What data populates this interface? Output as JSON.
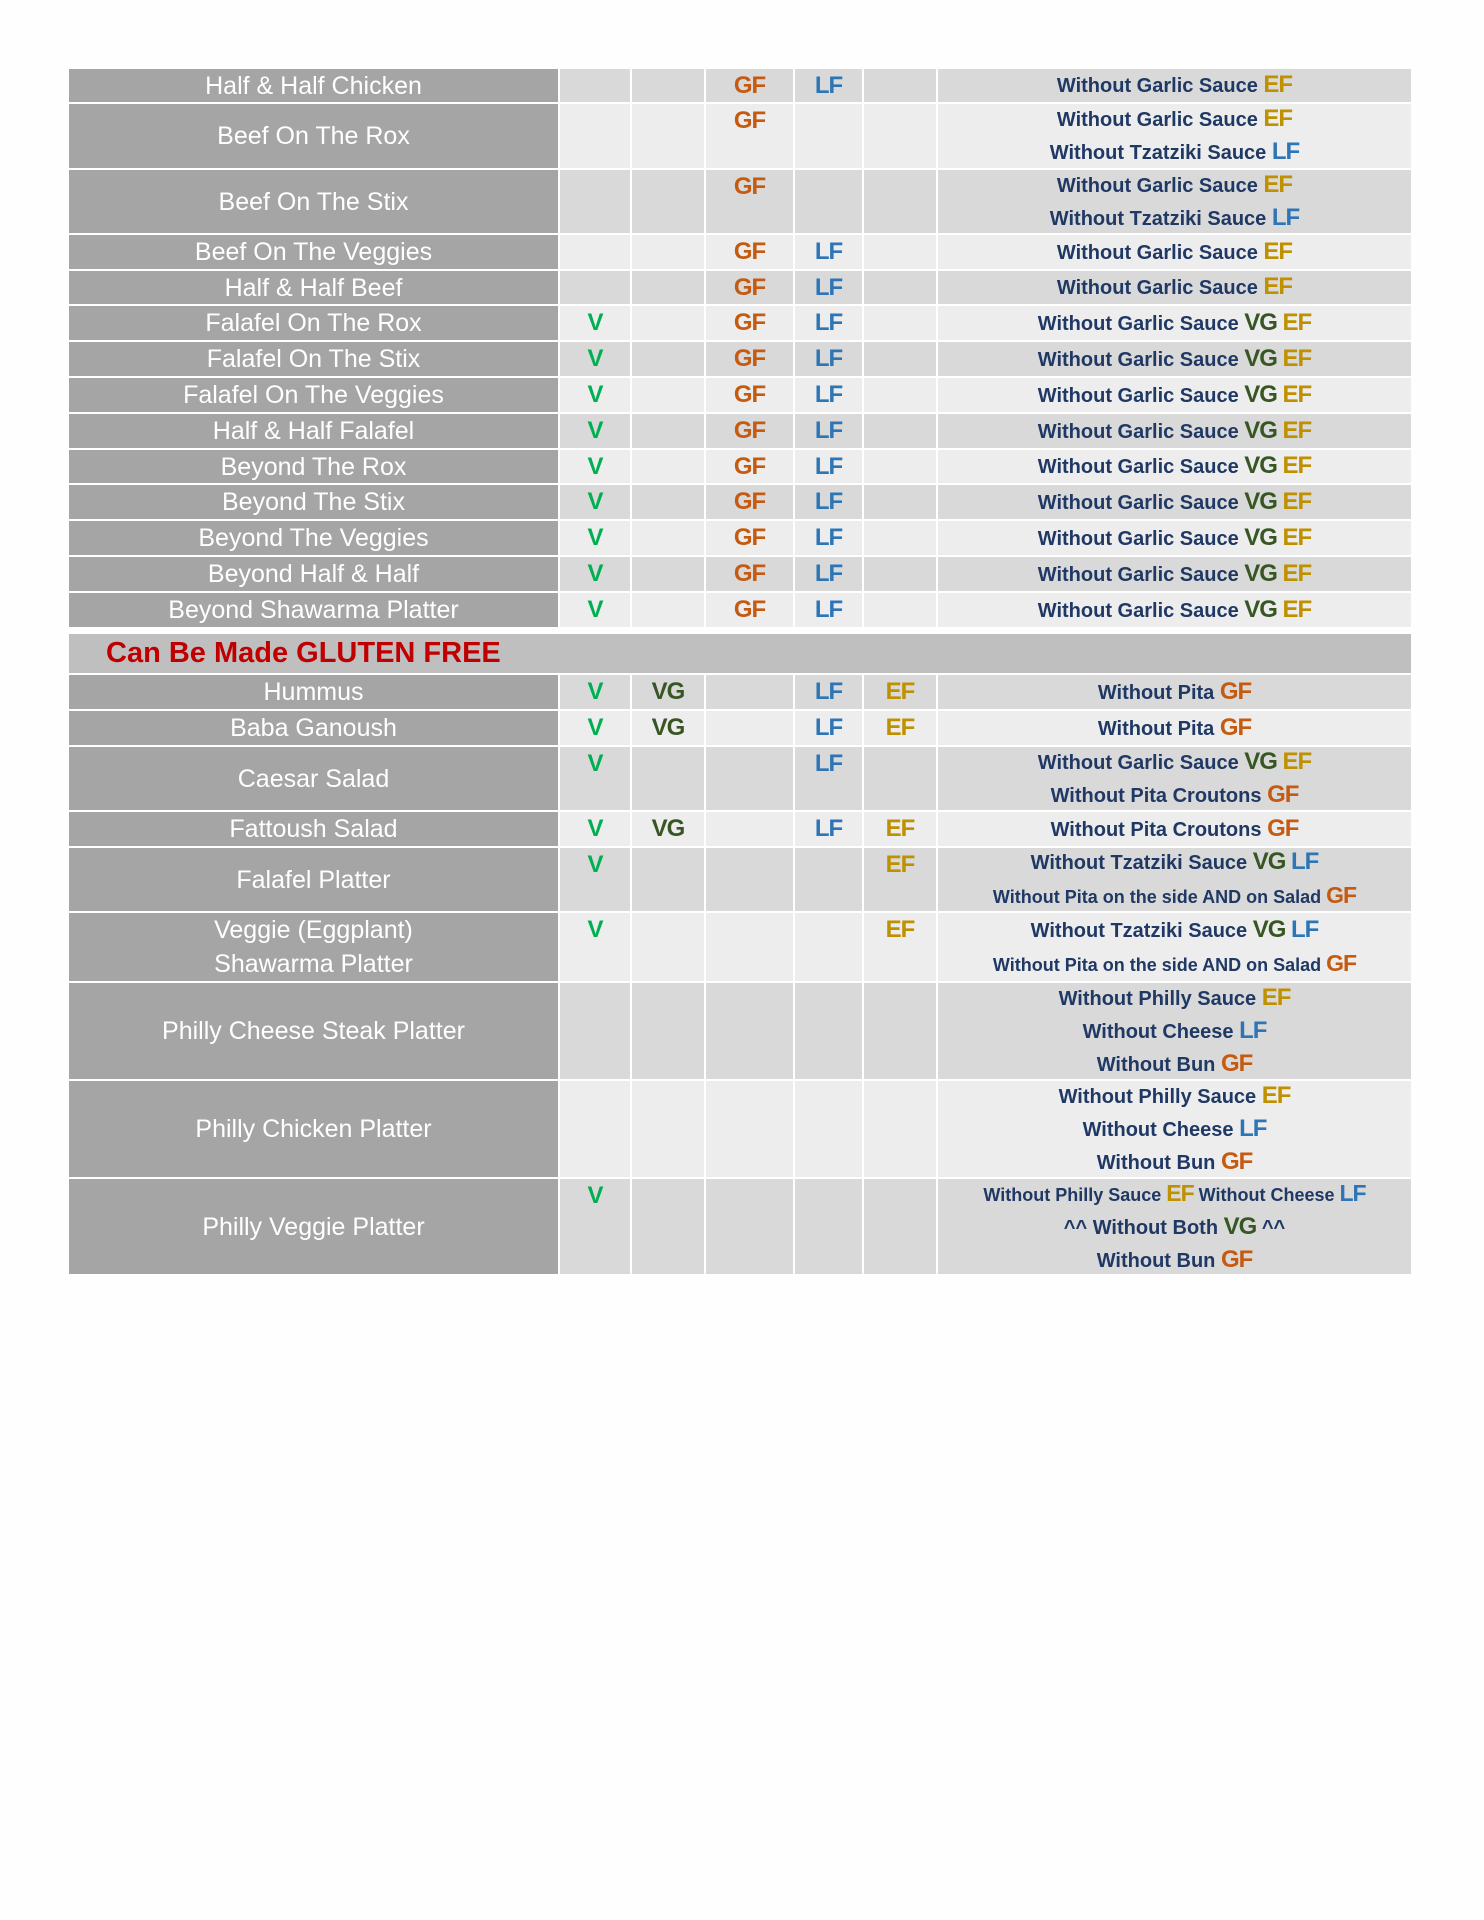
{
  "colors": {
    "V": "#00b050",
    "VG": "#375623",
    "GF": "#c55a11",
    "LF": "#2e75b6",
    "EF": "#bf9000"
  },
  "flag_columns": [
    "V",
    "VG",
    "GF",
    "LF",
    "EF"
  ],
  "section1": [
    {
      "name": [
        "Half & Half Chicken"
      ],
      "flags": [
        "",
        "",
        "GF",
        "LF",
        ""
      ],
      "notes": [
        [
          [
            "Without Garlic Sauce ",
            ""
          ],
          [
            "EF",
            "EF"
          ]
        ]
      ]
    },
    {
      "name": [
        "Beef On The Rox"
      ],
      "flags": [
        "",
        "",
        "GF",
        "",
        ""
      ],
      "notes": [
        [
          [
            "Without Garlic Sauce ",
            ""
          ],
          [
            "EF",
            "EF"
          ]
        ],
        [
          [
            "Without Tzatziki Sauce ",
            ""
          ],
          [
            "LF",
            "LF"
          ]
        ]
      ]
    },
    {
      "name": [
        "Beef On The Stix"
      ],
      "flags": [
        "",
        "",
        "GF",
        "",
        ""
      ],
      "notes": [
        [
          [
            "Without Garlic Sauce ",
            ""
          ],
          [
            "EF",
            "EF"
          ]
        ],
        [
          [
            "Without Tzatziki Sauce ",
            ""
          ],
          [
            "LF",
            "LF"
          ]
        ]
      ]
    },
    {
      "name": [
        "Beef On The Veggies"
      ],
      "flags": [
        "",
        "",
        "GF",
        "LF",
        ""
      ],
      "notes": [
        [
          [
            "Without Garlic Sauce ",
            ""
          ],
          [
            "EF",
            "EF"
          ]
        ]
      ]
    },
    {
      "name": [
        "Half & Half Beef"
      ],
      "flags": [
        "",
        "",
        "GF",
        "LF",
        ""
      ],
      "notes": [
        [
          [
            "Without Garlic Sauce ",
            ""
          ],
          [
            "EF",
            "EF"
          ]
        ]
      ]
    },
    {
      "name": [
        "Falafel On The Rox"
      ],
      "flags": [
        "V",
        "",
        "GF",
        "LF",
        ""
      ],
      "notes": [
        [
          [
            "Without Garlic Sauce ",
            ""
          ],
          [
            "VG",
            "VG"
          ],
          [
            " ",
            ""
          ],
          [
            "EF",
            "EF"
          ]
        ]
      ]
    },
    {
      "name": [
        "Falafel On The Stix"
      ],
      "flags": [
        "V",
        "",
        "GF",
        "LF",
        ""
      ],
      "notes": [
        [
          [
            "Without Garlic Sauce ",
            ""
          ],
          [
            "VG",
            "VG"
          ],
          [
            " ",
            ""
          ],
          [
            "EF",
            "EF"
          ]
        ]
      ]
    },
    {
      "name": [
        "Falafel On The Veggies"
      ],
      "flags": [
        "V",
        "",
        "GF",
        "LF",
        ""
      ],
      "notes": [
        [
          [
            "Without Garlic Sauce ",
            ""
          ],
          [
            "VG",
            "VG"
          ],
          [
            " ",
            ""
          ],
          [
            "EF",
            "EF"
          ]
        ]
      ]
    },
    {
      "name": [
        "Half & Half Falafel"
      ],
      "flags": [
        "V",
        "",
        "GF",
        "LF",
        ""
      ],
      "notes": [
        [
          [
            "Without Garlic Sauce ",
            ""
          ],
          [
            "VG",
            "VG"
          ],
          [
            " ",
            ""
          ],
          [
            "EF",
            "EF"
          ]
        ]
      ]
    },
    {
      "name": [
        "Beyond The Rox"
      ],
      "flags": [
        "V",
        "",
        "GF",
        "LF",
        ""
      ],
      "notes": [
        [
          [
            "Without Garlic Sauce ",
            ""
          ],
          [
            "VG",
            "VG"
          ],
          [
            " ",
            ""
          ],
          [
            "EF",
            "EF"
          ]
        ]
      ]
    },
    {
      "name": [
        "Beyond The Stix"
      ],
      "flags": [
        "V",
        "",
        "GF",
        "LF",
        ""
      ],
      "notes": [
        [
          [
            "Without Garlic Sauce ",
            ""
          ],
          [
            "VG",
            "VG"
          ],
          [
            " ",
            ""
          ],
          [
            "EF",
            "EF"
          ]
        ]
      ]
    },
    {
      "name": [
        "Beyond The Veggies"
      ],
      "flags": [
        "V",
        "",
        "GF",
        "LF",
        ""
      ],
      "notes": [
        [
          [
            "Without Garlic Sauce ",
            ""
          ],
          [
            "VG",
            "VG"
          ],
          [
            " ",
            ""
          ],
          [
            "EF",
            "EF"
          ]
        ]
      ]
    },
    {
      "name": [
        "Beyond Half & Half"
      ],
      "flags": [
        "V",
        "",
        "GF",
        "LF",
        ""
      ],
      "notes": [
        [
          [
            "Without Garlic Sauce ",
            ""
          ],
          [
            "VG",
            "VG"
          ],
          [
            " ",
            ""
          ],
          [
            "EF",
            "EF"
          ]
        ]
      ]
    },
    {
      "name": [
        "Beyond Shawarma Platter"
      ],
      "flags": [
        "V",
        "",
        "GF",
        "LF",
        ""
      ],
      "notes": [
        [
          [
            "Without Garlic Sauce ",
            ""
          ],
          [
            "VG",
            "VG"
          ],
          [
            " ",
            ""
          ],
          [
            "EF",
            "EF"
          ]
        ]
      ]
    }
  ],
  "section2_title": "Can Be Made GLUTEN FREE",
  "section2": [
    {
      "name": [
        "Hummus"
      ],
      "flags": [
        "V",
        "VG",
        "",
        "LF",
        "EF"
      ],
      "notes": [
        [
          [
            "Without Pita ",
            ""
          ],
          [
            "GF",
            "GF"
          ]
        ]
      ]
    },
    {
      "name": [
        "Baba Ganoush"
      ],
      "flags": [
        "V",
        "VG",
        "",
        "LF",
        "EF"
      ],
      "notes": [
        [
          [
            "Without Pita ",
            ""
          ],
          [
            "GF",
            "GF"
          ]
        ]
      ]
    },
    {
      "name": [
        "Caesar Salad"
      ],
      "flags": [
        "V",
        "",
        "",
        "LF",
        ""
      ],
      "notes": [
        [
          [
            "Without Garlic Sauce ",
            ""
          ],
          [
            "VG",
            "VG"
          ],
          [
            " ",
            ""
          ],
          [
            "EF",
            "EF"
          ]
        ],
        [
          [
            "Without Pita Croutons ",
            ""
          ],
          [
            "GF",
            "GF"
          ]
        ]
      ]
    },
    {
      "name": [
        "Fattoush Salad"
      ],
      "flags": [
        "V",
        "VG",
        "",
        "LF",
        "EF"
      ],
      "notes": [
        [
          [
            "Without Pita Croutons ",
            ""
          ],
          [
            "GF",
            "GF"
          ]
        ]
      ]
    },
    {
      "name": [
        "Falafel Platter"
      ],
      "flags": [
        "V",
        "",
        "",
        "",
        "EF"
      ],
      "notes": [
        [
          [
            "Without Tzatziki Sauce ",
            ""
          ],
          [
            "VG",
            "VG"
          ],
          [
            " ",
            ""
          ],
          [
            "LF",
            "LF"
          ]
        ],
        [
          [
            "Without Pita on the side AND on Salad ",
            ""
          ],
          [
            "GF",
            "GF"
          ],
          [
            "small",
            "small"
          ]
        ]
      ]
    },
    {
      "name": [
        "Veggie (Eggplant)",
        "Shawarma Platter"
      ],
      "flags": [
        "V",
        "",
        "",
        "",
        "EF"
      ],
      "notes": [
        [
          [
            "Without Tzatziki Sauce ",
            ""
          ],
          [
            "VG",
            "VG"
          ],
          [
            " ",
            ""
          ],
          [
            "LF",
            "LF"
          ]
        ],
        [
          [
            "Without Pita on the side AND on Salad ",
            ""
          ],
          [
            "GF",
            "GF"
          ],
          [
            "small",
            "small"
          ]
        ]
      ]
    },
    {
      "name": [
        "Philly Cheese Steak Platter"
      ],
      "flags": [
        "",
        "",
        "",
        "",
        ""
      ],
      "notes": [
        [
          [
            "Without Philly Sauce ",
            ""
          ],
          [
            "EF",
            "EF"
          ]
        ],
        [
          [
            "Without Cheese ",
            ""
          ],
          [
            "LF",
            "LF"
          ]
        ],
        [
          [
            "Without Bun ",
            ""
          ],
          [
            "GF",
            "GF"
          ]
        ]
      ]
    },
    {
      "name": [
        "Philly Chicken Platter"
      ],
      "flags": [
        "",
        "",
        "",
        "",
        ""
      ],
      "notes": [
        [
          [
            "Without Philly Sauce ",
            ""
          ],
          [
            "EF",
            "EF"
          ]
        ],
        [
          [
            "Without Cheese ",
            ""
          ],
          [
            "LF",
            "LF"
          ]
        ],
        [
          [
            "Without Bun ",
            ""
          ],
          [
            "GF",
            "GF"
          ]
        ]
      ]
    },
    {
      "name": [
        "Philly Veggie Platter"
      ],
      "flags": [
        "V",
        "",
        "",
        "",
        ""
      ],
      "notes": [
        [
          [
            "Without Philly Sauce ",
            ""
          ],
          [
            "EF",
            "EF"
          ],
          [
            " Without Cheese ",
            ""
          ],
          [
            "LF",
            "LF"
          ],
          [
            "small",
            "small"
          ]
        ],
        [
          [
            "^^ Without Both ",
            ""
          ],
          [
            "VG",
            "VG"
          ],
          [
            " ^^",
            ""
          ]
        ],
        [
          [
            "Without Bun ",
            ""
          ],
          [
            "GF",
            "GF"
          ]
        ]
      ]
    }
  ]
}
